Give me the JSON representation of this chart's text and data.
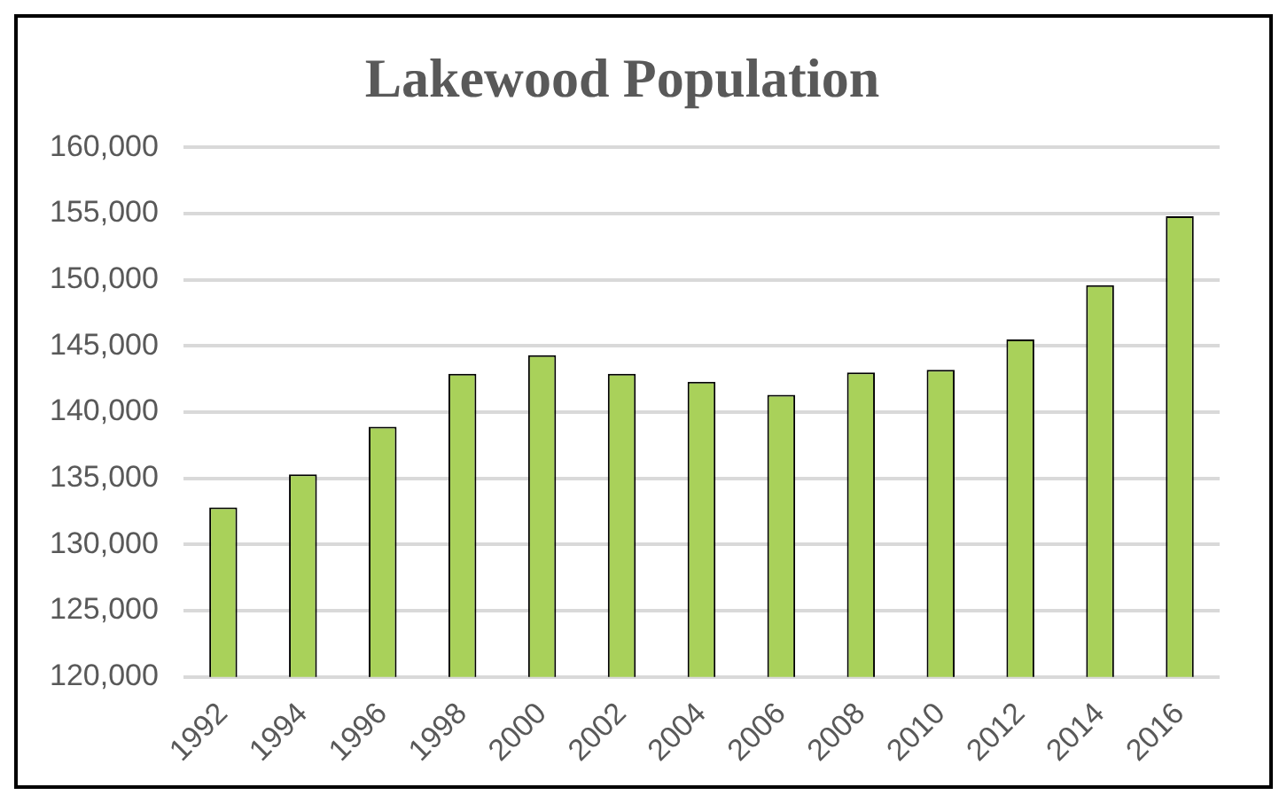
{
  "chart_data": {
    "type": "bar",
    "title": "Lakewood Population",
    "categories": [
      "1992",
      "1994",
      "1996",
      "1998",
      "2000",
      "2002",
      "2004",
      "2006",
      "2008",
      "2010",
      "2012",
      "2014",
      "2016"
    ],
    "values": [
      132800,
      135300,
      138900,
      142900,
      144300,
      142900,
      142300,
      141300,
      143000,
      143200,
      145500,
      149600,
      154800
    ],
    "color": "#a9d15a",
    "ylim": [
      120000,
      160000
    ],
    "yticks": [
      {
        "value": 120000,
        "label": "120,000"
      },
      {
        "value": 125000,
        "label": "125,000"
      },
      {
        "value": 130000,
        "label": "130,000"
      },
      {
        "value": 135000,
        "label": "135,000"
      },
      {
        "value": 140000,
        "label": "140,000"
      },
      {
        "value": 145000,
        "label": "145,000"
      },
      {
        "value": 150000,
        "label": "150,000"
      },
      {
        "value": 155000,
        "label": "155,000"
      },
      {
        "value": 160000,
        "label": "160,000"
      }
    ],
    "grid": "y"
  }
}
